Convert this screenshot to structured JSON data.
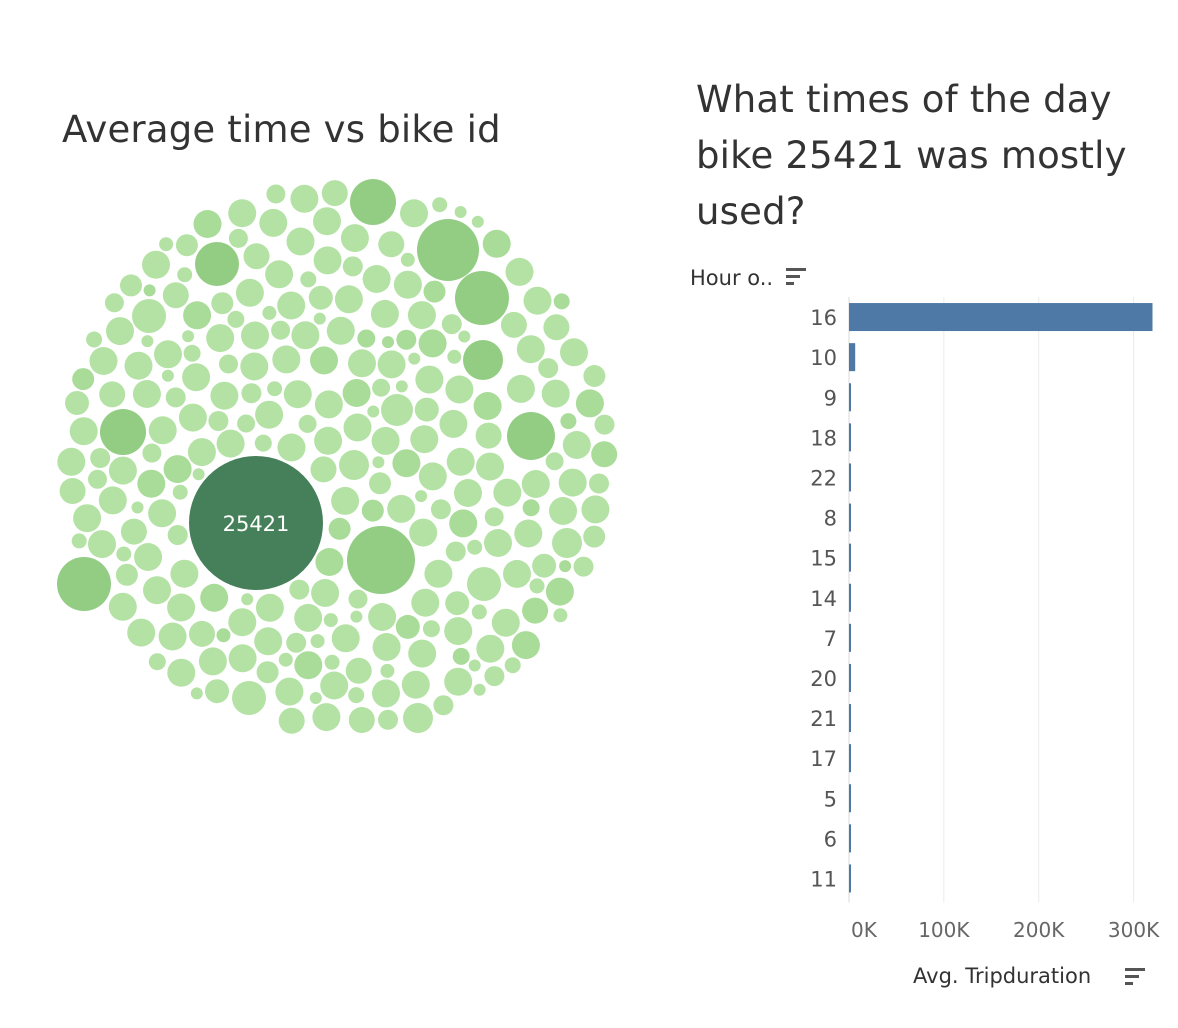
{
  "left_chart": {
    "title": "Average time vs bike id",
    "highlight_label": "25421",
    "colors": {
      "highlight": "#46805a",
      "medium": "#93cd84",
      "light": "#b4e2a5"
    }
  },
  "right_chart": {
    "title": "What times of the day bike 25421 was mostly used?",
    "row_header": "Hour o..",
    "x_axis_title": "Avg. Tripduration",
    "sort_icon": "sort-icon"
  },
  "chart_data": [
    {
      "type": "bubble",
      "title": "Average time vs bike id",
      "highlighted": {
        "label": "25421",
        "color": "#46805a"
      }
    },
    {
      "type": "bar",
      "orientation": "horizontal",
      "title": "What times of the day bike 25421 was mostly used?",
      "ylabel": "Hour o..",
      "xlabel": "Avg. Tripduration",
      "categories": [
        "16",
        "10",
        "9",
        "18",
        "22",
        "8",
        "15",
        "14",
        "7",
        "20",
        "21",
        "17",
        "5",
        "6",
        "11"
      ],
      "values": [
        320000,
        6500,
        900,
        800,
        700,
        650,
        600,
        550,
        500,
        450,
        420,
        400,
        380,
        350,
        300
      ],
      "xlim": [
        0,
        330000
      ],
      "xticks": [
        0,
        100000,
        200000,
        300000
      ],
      "xtick_labels": [
        "0K",
        "100K",
        "200K",
        "300K"
      ],
      "bar_color": "#4e79a7",
      "grid": "vertical"
    }
  ]
}
